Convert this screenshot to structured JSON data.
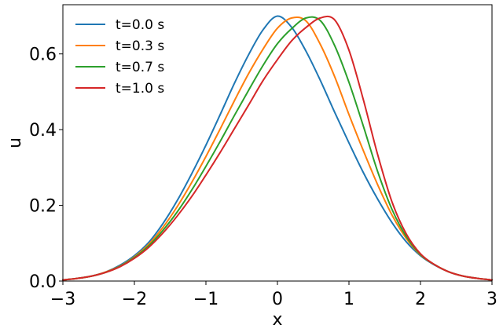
{
  "chart_data": {
    "type": "line",
    "title": "",
    "xlabel": "x",
    "ylabel": "u",
    "xlim": [
      -3,
      3
    ],
    "ylim": [
      0,
      0.73
    ],
    "xticks": [
      -3,
      -2,
      -1,
      0,
      1,
      2,
      3
    ],
    "xtick_labels": [
      "−3",
      "−2",
      "−1",
      "0",
      "1",
      "2",
      "3"
    ],
    "yticks": [
      0.0,
      0.2,
      0.4,
      0.6
    ],
    "ytick_labels": [
      "0.0",
      "0.2",
      "0.4",
      "0.6"
    ],
    "grid": false,
    "legend_position": "upper-left",
    "x": [
      -3.0,
      -2.8,
      -2.6,
      -2.4,
      -2.2,
      -2.0,
      -1.8,
      -1.6,
      -1.4,
      -1.2,
      -1.0,
      -0.8,
      -0.6,
      -0.4,
      -0.2,
      0.0,
      0.2,
      0.4,
      0.6,
      0.8,
      1.0,
      1.2,
      1.4,
      1.6,
      1.8,
      2.0,
      2.2,
      2.4,
      2.6,
      2.8,
      3.0
    ],
    "series": [
      {
        "name": "t=0.0 s",
        "color": "#1f77b4",
        "values": [
          0.003,
          0.007,
          0.013,
          0.024,
          0.042,
          0.067,
          0.102,
          0.152,
          0.213,
          0.283,
          0.359,
          0.44,
          0.523,
          0.599,
          0.664,
          0.7,
          0.67,
          0.607,
          0.53,
          0.446,
          0.365,
          0.287,
          0.217,
          0.155,
          0.104,
          0.067,
          0.042,
          0.024,
          0.013,
          0.007,
          0.003
        ]
      },
      {
        "name": "t=0.3 s",
        "color": "#ff7f0e",
        "values": [
          0.003,
          0.007,
          0.013,
          0.024,
          0.04,
          0.064,
          0.097,
          0.142,
          0.197,
          0.26,
          0.329,
          0.402,
          0.477,
          0.549,
          0.613,
          0.668,
          0.695,
          0.687,
          0.625,
          0.54,
          0.44,
          0.345,
          0.255,
          0.175,
          0.113,
          0.069,
          0.043,
          0.024,
          0.013,
          0.007,
          0.003
        ]
      },
      {
        "name": "t=0.7 s",
        "color": "#2ca02c",
        "values": [
          0.003,
          0.007,
          0.013,
          0.023,
          0.039,
          0.062,
          0.093,
          0.134,
          0.183,
          0.24,
          0.303,
          0.369,
          0.438,
          0.505,
          0.57,
          0.627,
          0.667,
          0.695,
          0.688,
          0.622,
          0.525,
          0.41,
          0.29,
          0.19,
          0.118,
          0.07,
          0.043,
          0.024,
          0.013,
          0.007,
          0.003
        ]
      },
      {
        "name": "t=1.0 s",
        "color": "#d62728",
        "values": [
          0.003,
          0.007,
          0.013,
          0.023,
          0.038,
          0.06,
          0.089,
          0.127,
          0.172,
          0.223,
          0.28,
          0.34,
          0.403,
          0.466,
          0.53,
          0.585,
          0.635,
          0.67,
          0.695,
          0.69,
          0.61,
          0.48,
          0.335,
          0.21,
          0.125,
          0.072,
          0.043,
          0.024,
          0.013,
          0.007,
          0.003
        ]
      }
    ]
  }
}
